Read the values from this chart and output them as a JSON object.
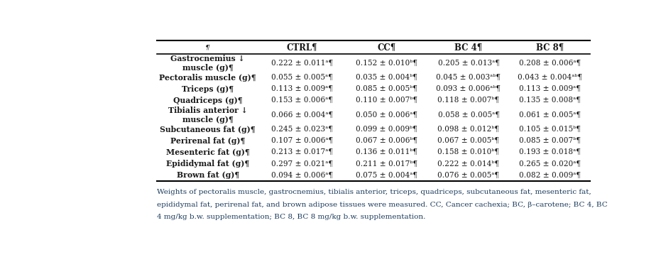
{
  "columns": [
    "¶",
    "CTRL¶",
    "CC¶",
    "BC 4¶",
    "BC 8¶"
  ],
  "rows": [
    {
      "label": "Gastrocnemius ↓\nmuscle (g)¶",
      "label_two_line": true,
      "ctrl": "0.222 ± 0.011ᵃ¶",
      "cc": "0.152 ± 0.010ᵇ¶",
      "bc4": "0.205 ± 0.013ᵃ¶",
      "bc8": "0.208 ± 0.006ᵃ¶"
    },
    {
      "label": "Pectoralis muscle (g)¶",
      "label_two_line": false,
      "ctrl": "0.055 ± 0.005ᵃ¶",
      "cc": "0.035 ± 0.004ᵇ¶",
      "bc4": "0.045 ± 0.003ᵃᵇ¶",
      "bc8": "0.043 ± 0.004ᵃᵇ¶"
    },
    {
      "label": "Triceps (g)¶",
      "label_two_line": false,
      "ctrl": "0.113 ± 0.009ᵃ¶",
      "cc": "0.085 ± 0.005ᵇ¶",
      "bc4": "0.093 ± 0.006ᵃᵇ¶",
      "bc8": "0.113 ± 0.009ᵃ¶"
    },
    {
      "label": "Quadriceps (g)¶",
      "label_two_line": false,
      "ctrl": "0.153 ± 0.006ᵃ¶",
      "cc": "0.110 ± 0.007ᵇ¶",
      "bc4": "0.118 ± 0.007ᵇ¶",
      "bc8": "0.135 ± 0.008ᵃ¶"
    },
    {
      "label": "Tibialis anterior ↓\nmuscle (g)¶",
      "label_two_line": true,
      "ctrl": "0.066 ± 0.004ᵃ¶",
      "cc": "0.050 ± 0.006ᵃ¶",
      "bc4": "0.058 ± 0.005ᵃ¶",
      "bc8": "0.061 ± 0.005ᵃ¶"
    },
    {
      "label": "Subcutaneous fat (g)¶",
      "label_two_line": false,
      "ctrl": "0.245 ± 0.023ᵃ¶",
      "cc": "0.099 ± 0.009ᵇ¶",
      "bc4": "0.098 ± 0.012ᵇ¶",
      "bc8": "0.105 ± 0.015ᵇ¶"
    },
    {
      "label": "Perirenal fat (g)¶",
      "label_two_line": false,
      "ctrl": "0.107 ± 0.006ᵃ¶",
      "cc": "0.067 ± 0.006ᵇ¶",
      "bc4": "0.067 ± 0.005ᵇ¶",
      "bc8": "0.085 ± 0.007ᵇ¶"
    },
    {
      "label": "Mesenteric fat (g)¶",
      "label_two_line": false,
      "ctrl": "0.213 ± 0.017ᵃ¶",
      "cc": "0.136 ± 0.011ᵇ¶",
      "bc4": "0.158 ± 0.010ᵇ¶",
      "bc8": "0.193 ± 0.018ᵃ¶"
    },
    {
      "label": "Epididymal fat (g)¶",
      "label_two_line": false,
      "ctrl": "0.297 ± 0.021ᵃ¶",
      "cc": "0.211 ± 0.017ᵇ¶",
      "bc4": "0.222 ± 0.014ᵇ¶",
      "bc8": "0.265 ± 0.020ᵃ¶"
    },
    {
      "label": "Brown fat (g)¶",
      "label_two_line": false,
      "ctrl": "0.094 ± 0.006ᵃ¶",
      "cc": "0.075 ± 0.004ᵃ¶",
      "bc4": "0.076 ± 0.005ᵃ¶",
      "bc8": "0.082 ± 0.009ᵃ¶"
    }
  ],
  "caption_line1": "Weights of pectoralis muscle, gastrocnemius, tibialis anterior, triceps, quadriceps, subcutaneous fat, mesenteric fat,",
  "caption_line2": "epididymal fat, perirenal fat, and brown adipose tissues were measured. CC, Cancer cachexia; BC, β–carotene; BC 4, BC",
  "caption_line3": "4 mg/kg b.w. supplementation; BC 8, BC 8 mg/kg b.w. supplementation.",
  "background_color": "#ffffff",
  "text_color": "#1a1a1a",
  "caption_color": "#1a3a5c",
  "header_fontsize": 8.5,
  "body_fontsize": 7.8,
  "caption_fontsize": 7.5
}
